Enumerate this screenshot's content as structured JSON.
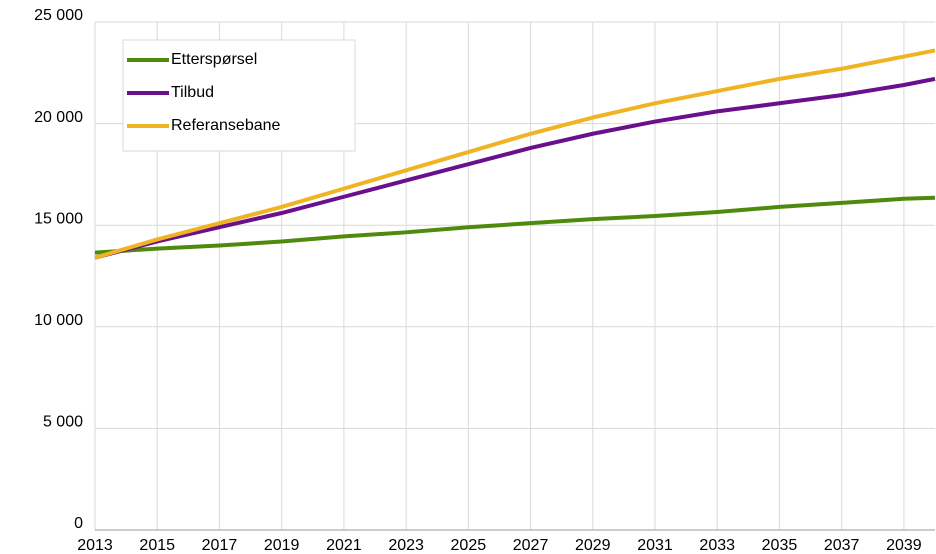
{
  "chart_data": {
    "type": "line",
    "x": [
      2013,
      2015,
      2017,
      2019,
      2021,
      2023,
      2025,
      2027,
      2029,
      2031,
      2033,
      2035,
      2037,
      2039,
      2040
    ],
    "series": [
      {
        "name": "Etterspørsel",
        "color": "#4e8a0e",
        "values": [
          13650,
          13850,
          14000,
          14200,
          14450,
          14650,
          14900,
          15100,
          15300,
          15450,
          15650,
          15900,
          16100,
          16300,
          16350
        ]
      },
      {
        "name": "Tilbud",
        "color": "#6a0f8e",
        "values": [
          13400,
          14200,
          14900,
          15600,
          16400,
          17200,
          18000,
          18800,
          19500,
          20100,
          20600,
          21000,
          21400,
          21900,
          22200
        ]
      },
      {
        "name": "Referansebane",
        "color": "#f0b323",
        "values": [
          13400,
          14300,
          15100,
          15900,
          16800,
          17700,
          18600,
          19500,
          20300,
          21000,
          21600,
          22200,
          22700,
          23300,
          23600
        ]
      }
    ],
    "xlim": [
      2013,
      2040
    ],
    "xticks": [
      2013,
      2015,
      2017,
      2019,
      2021,
      2023,
      2025,
      2027,
      2029,
      2031,
      2033,
      2035,
      2037,
      2039
    ],
    "ylim": [
      0,
      25000
    ],
    "yticks": [
      0,
      {
        "value": 5000,
        "label": "5 000"
      },
      {
        "value": 10000,
        "label": "10 000"
      },
      {
        "value": 15000,
        "label": "15 000"
      },
      {
        "value": 20000,
        "label": "20 000"
      },
      {
        "value": 25000,
        "label": "25 000"
      }
    ],
    "grid": true,
    "legend": "upper left"
  }
}
